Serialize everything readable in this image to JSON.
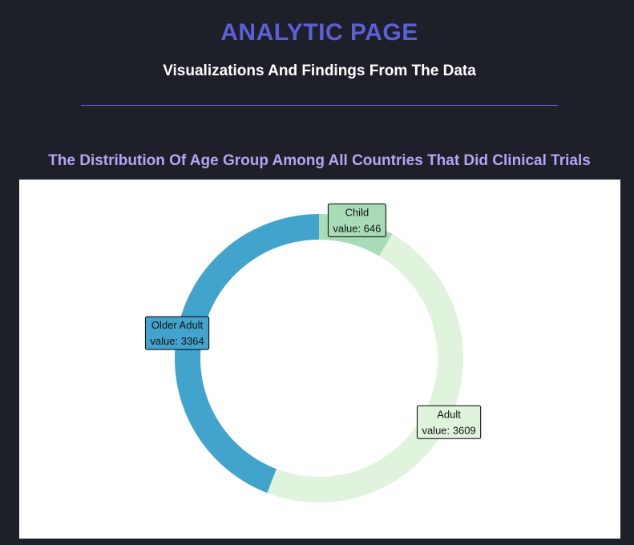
{
  "header": {
    "title": "ANALYTIC PAGE",
    "subtitle": "Visualizations And Findings From The Data"
  },
  "colors": {
    "background": "#1e2029",
    "title": "#5c5fd6",
    "chart_title": "#b3a6f2"
  },
  "chart_data": {
    "type": "pie",
    "variant": "donut",
    "title": "The Distribution Of Age Group Among All Countries That Did Clinical Trials",
    "value_prefix": "value: ",
    "slices": [
      {
        "label": "Child",
        "value": 646,
        "color": "#a8dcb6"
      },
      {
        "label": "Adult",
        "value": 3609,
        "color": "#dff3dd"
      },
      {
        "label": "Older Adult",
        "value": 3364,
        "color": "#42a3cd"
      }
    ]
  }
}
